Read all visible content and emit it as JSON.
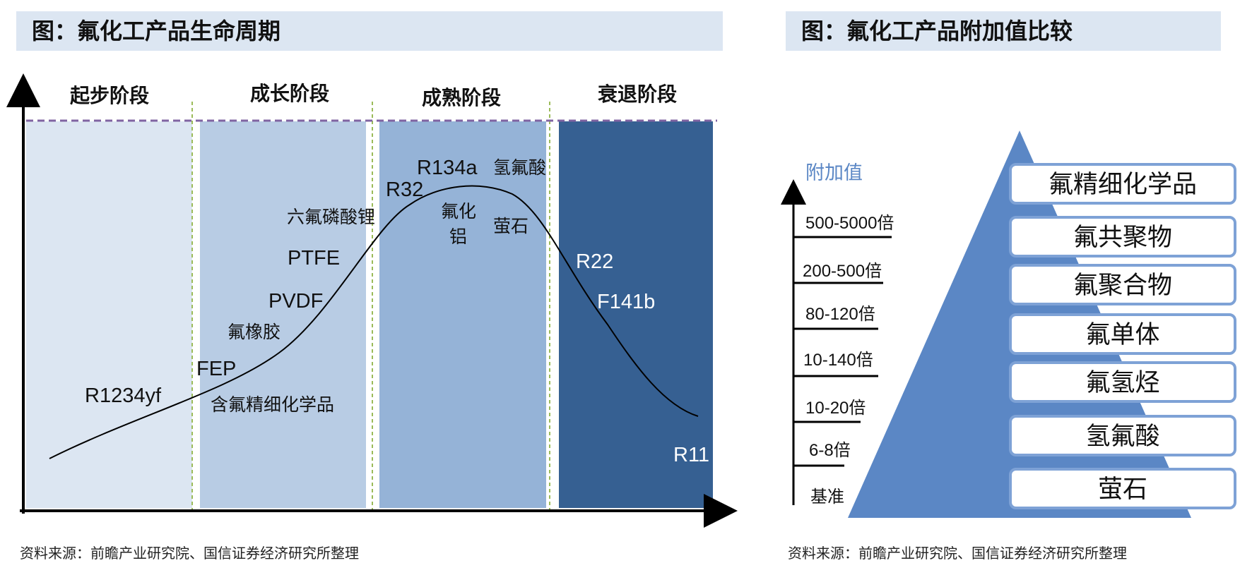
{
  "left": {
    "title": "图：氟化工产品生命周期",
    "source": "资料来源：前瞻产业研究院、国信证券经济研究所整理",
    "stages": [
      "起步阶段",
      "成长阶段",
      "成熟阶段",
      "衰退阶段"
    ],
    "stage_colors": [
      "#dce6f2",
      "#b8cce4",
      "#95b3d7",
      "#366092"
    ],
    "products": [
      "R1234yf",
      "FEP",
      "含氟精细化学品",
      "氟橡胶",
      "PVDF",
      "PTFE",
      "六氟磷酸锂",
      "R32",
      "R134a",
      "氢氟酸",
      "氟化",
      "铝",
      "萤石",
      "R22",
      "F141b",
      "R11"
    ]
  },
  "right": {
    "title": "图：氟化工产品附加值比较",
    "source": "资料来源：前瞻产业研究院、国信证券经济研究所整理",
    "axis_label": "附加值",
    "scale_labels": [
      "500-5000倍",
      "200-500倍",
      "80-120倍",
      "10-140倍",
      "10-20倍",
      "6-8倍",
      "基准"
    ],
    "tiers": [
      "氟精细化学品",
      "氟共聚物",
      "氟聚合物",
      "氟单体",
      "氟氢烃",
      "氢氟酸",
      "萤石"
    ],
    "colors": {
      "pyramid": "#5b87c5",
      "tier_border": "#7ea2d6",
      "axis_label": "#5b87c5"
    }
  }
}
